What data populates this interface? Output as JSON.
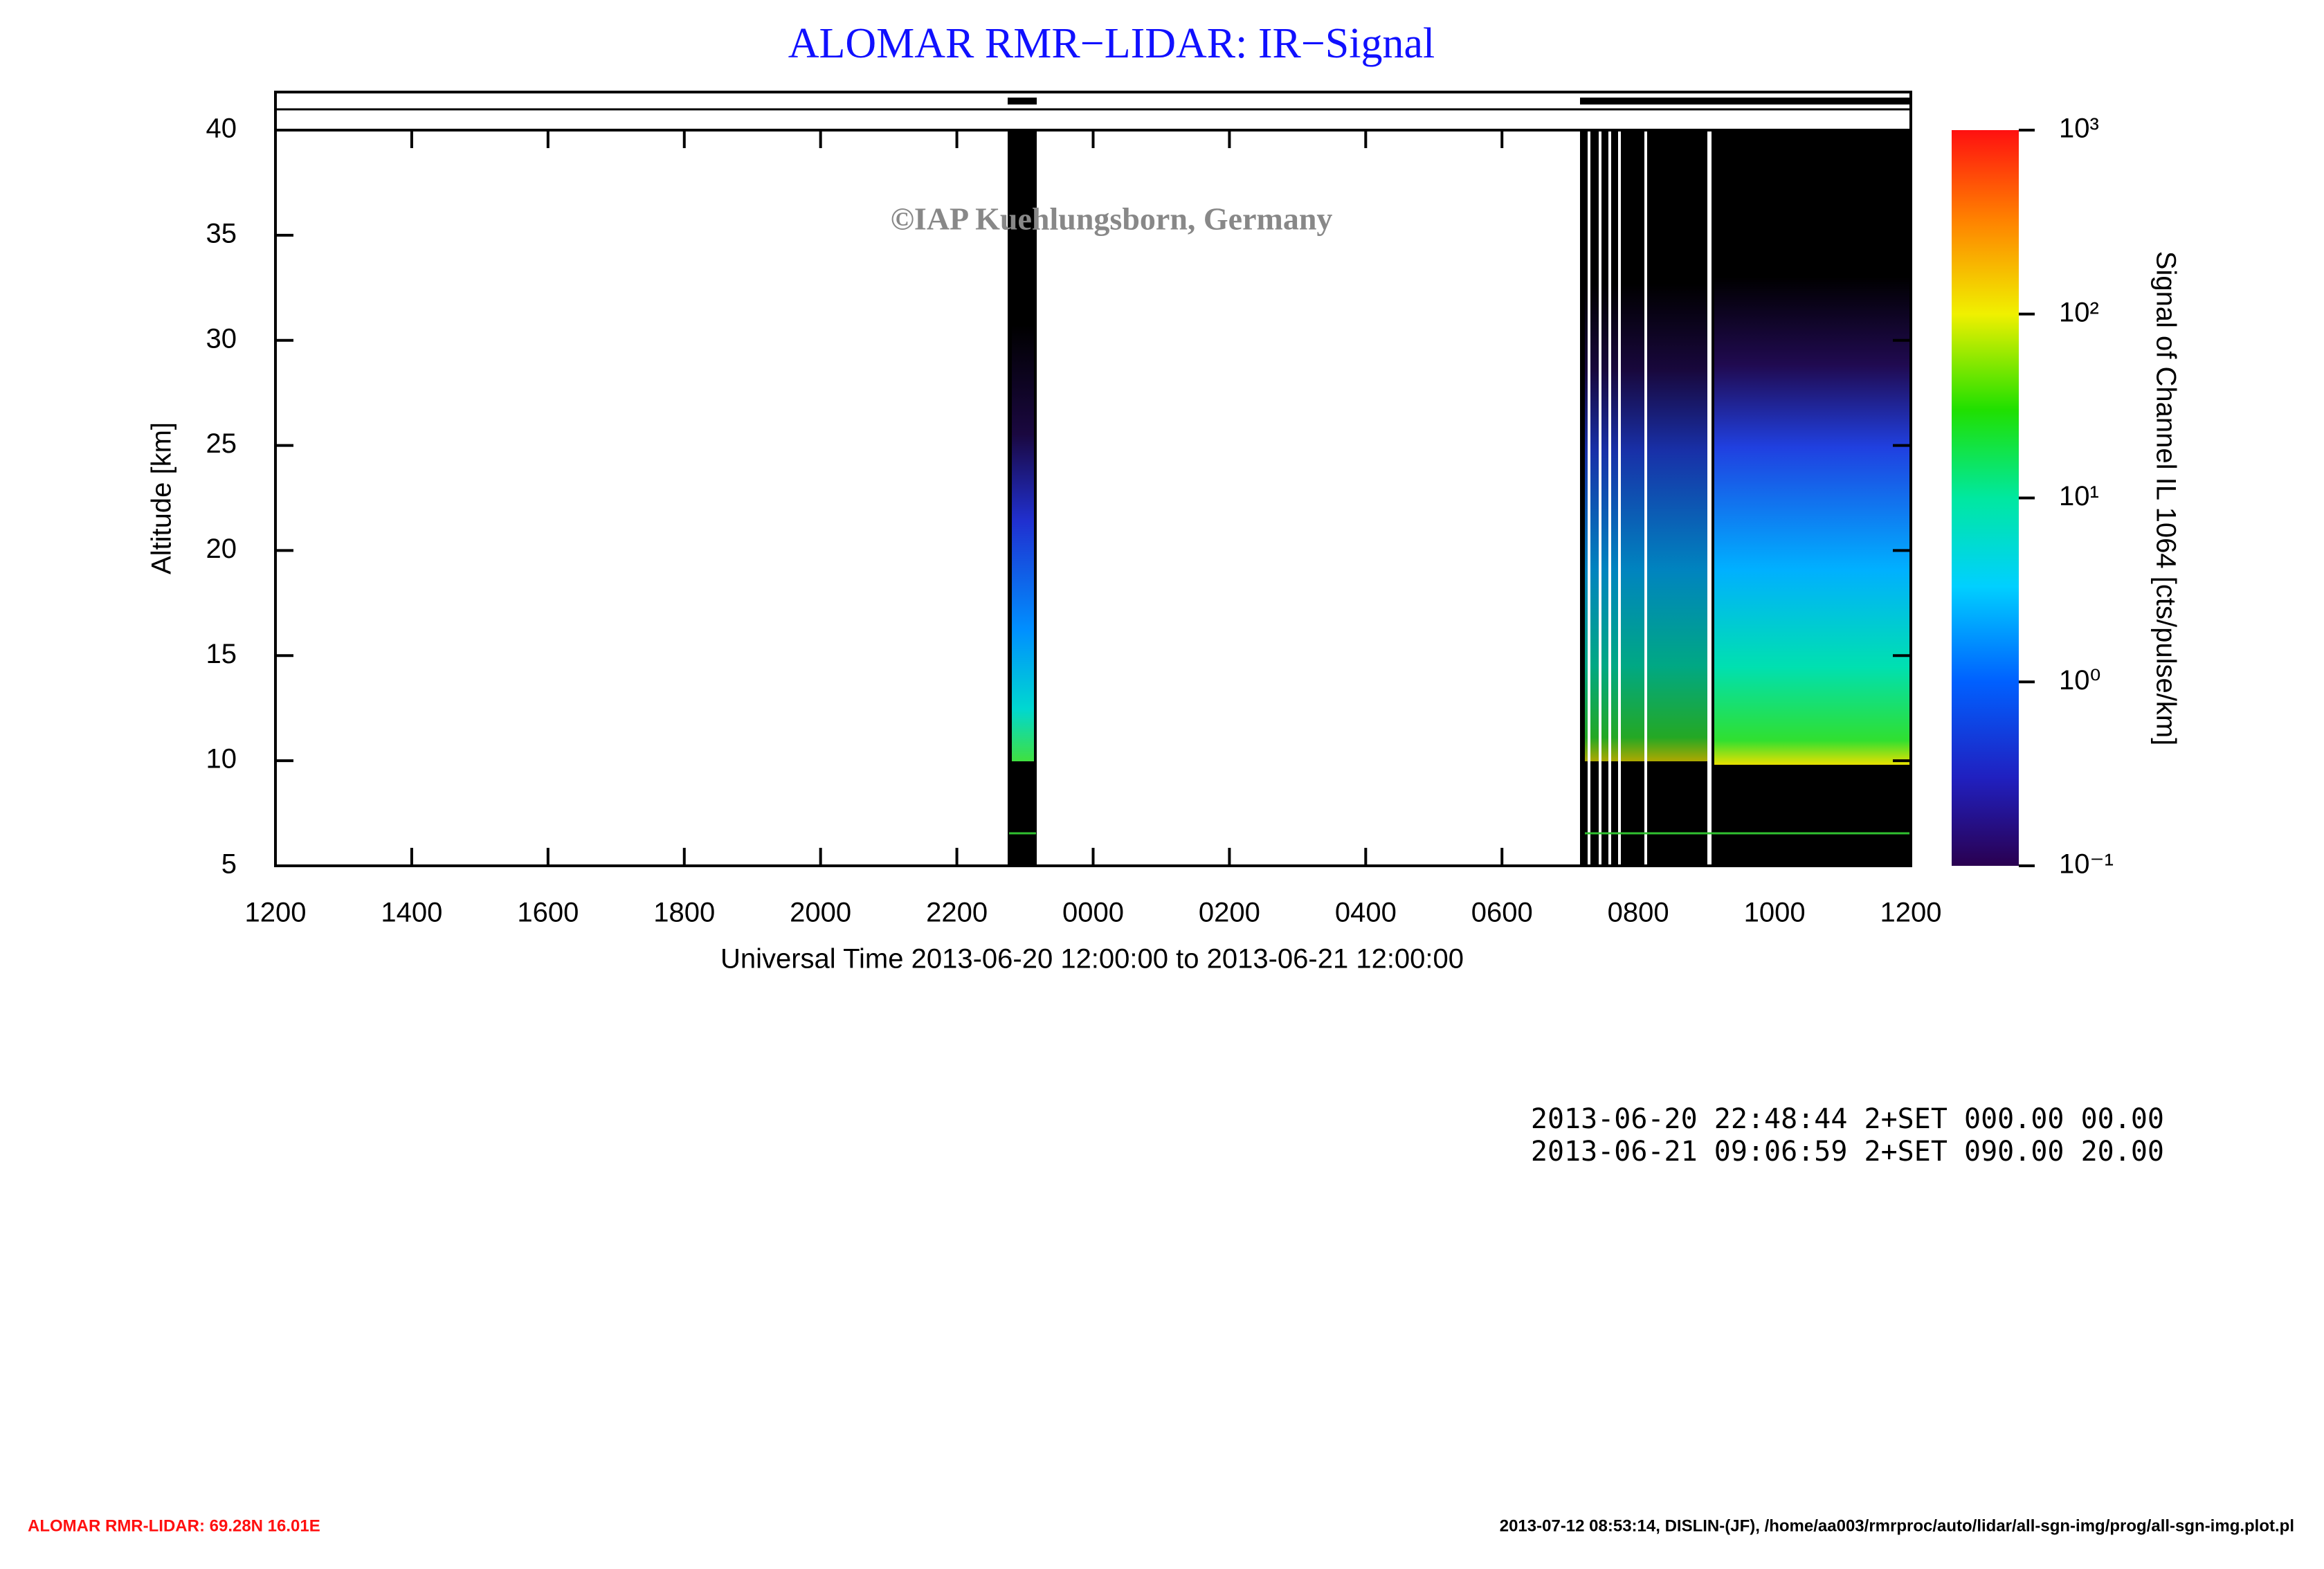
{
  "chart_data": {
    "type": "heatmap",
    "title": "ALOMAR RMR−LIDAR: IR−Signal",
    "watermark": "©IAP Kuehlungsborn, Germany",
    "xlabel": "Universal Time 2013-06-20 12:00:00 to 2013-06-21 12:00:00",
    "ylabel": "Altitude [km]",
    "xlim": [
      12,
      36
    ],
    "xticks": [
      {
        "value": 12,
        "label": "1200"
      },
      {
        "value": 14,
        "label": "1400"
      },
      {
        "value": 16,
        "label": "1600"
      },
      {
        "value": 18,
        "label": "1800"
      },
      {
        "value": 20,
        "label": "2000"
      },
      {
        "value": 22,
        "label": "2200"
      },
      {
        "value": 24,
        "label": "0000"
      },
      {
        "value": 26,
        "label": "0200"
      },
      {
        "value": 28,
        "label": "0400"
      },
      {
        "value": 30,
        "label": "0600"
      },
      {
        "value": 32,
        "label": "0800"
      },
      {
        "value": 34,
        "label": "1000"
      },
      {
        "value": 36,
        "label": "1200"
      }
    ],
    "ylim": [
      5,
      40
    ],
    "yticks": [
      5,
      10,
      15,
      20,
      25,
      30,
      35,
      40
    ],
    "colorbar": {
      "label": "Signal of Channel IL 1064 [cts/pulse/km]",
      "scale": "log",
      "lim": [
        0.1,
        1000
      ],
      "ticks": [
        {
          "value": 0.1,
          "label": "10⁻¹"
        },
        {
          "value": 1,
          "label": "10⁰"
        },
        {
          "value": 10,
          "label": "10¹"
        },
        {
          "value": 100,
          "label": "10²"
        },
        {
          "value": 1000,
          "label": "10³"
        }
      ]
    }
  },
  "annotations": [
    "2013-06-20 22:48:44 2+SET 000.00 00.00",
    "2013-06-21 09:06:59 2+SET 090.00 20.00"
  ],
  "footer": {
    "left": "ALOMAR RMR-LIDAR: 69.28N 16.01E",
    "right": "2013-07-12 08:53:14, DISLIN-(JF), /home/aa003/rmrproc/auto/lidar/all-sgn-img/prog/all-sgn-img.plot.pl"
  }
}
